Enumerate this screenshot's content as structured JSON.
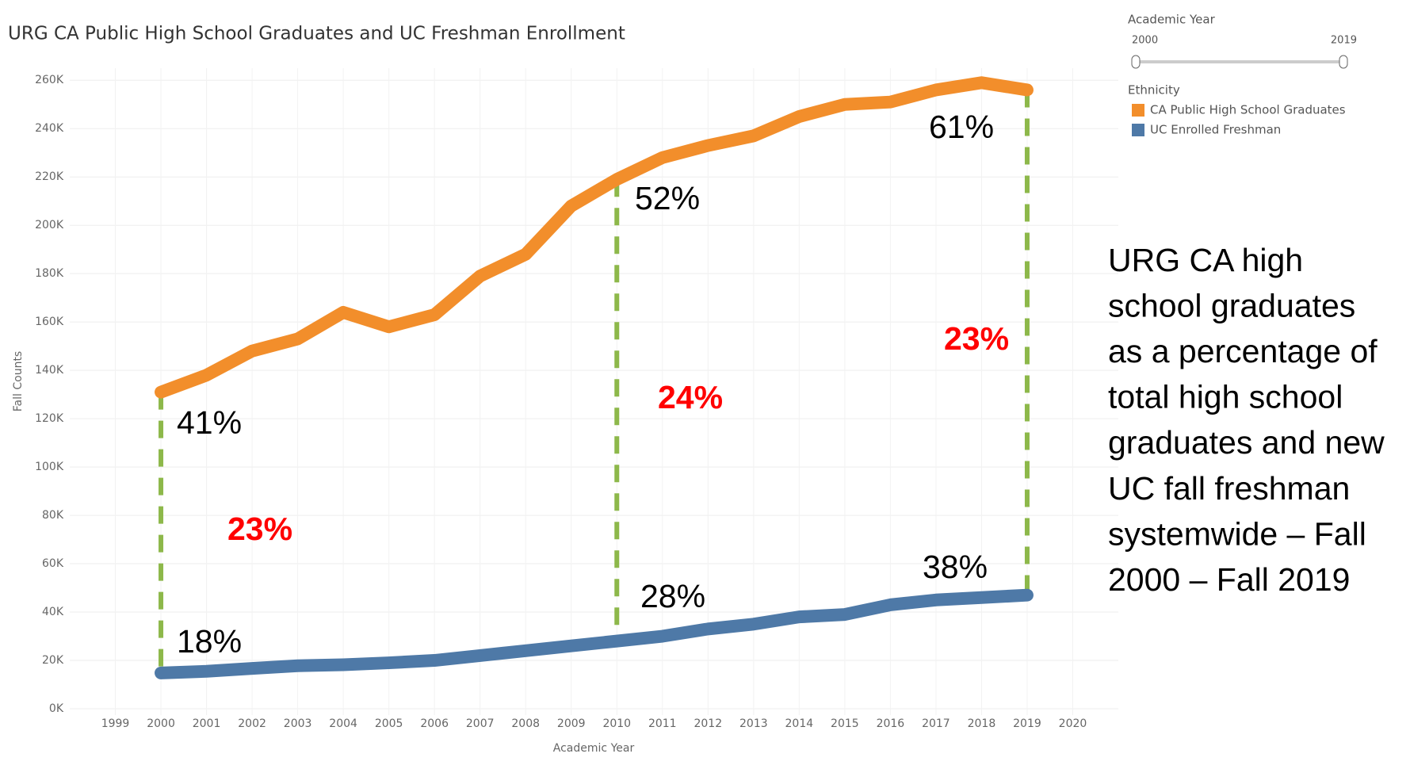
{
  "chart_data": {
    "type": "line",
    "title": "URG CA Public High School Graduates and UC Freshman Enrollment",
    "x_label": "Academic Year",
    "y_label": "Fall Counts",
    "x": [
      2000,
      2001,
      2002,
      2003,
      2004,
      2005,
      2006,
      2007,
      2008,
      2009,
      2010,
      2011,
      2012,
      2013,
      2014,
      2015,
      2016,
      2017,
      2018,
      2019
    ],
    "series": [
      {
        "name": "CA Public High School Graduates",
        "color": "#f28e2b",
        "values": [
          131000,
          138000,
          148000,
          153000,
          164000,
          158000,
          163000,
          179000,
          188000,
          208000,
          219000,
          228000,
          233000,
          237000,
          245000,
          250000,
          251000,
          256000,
          259000,
          256000
        ]
      },
      {
        "name": "UC Enrolled Freshman",
        "color": "#4e79a7",
        "values": [
          14800,
          15500,
          16700,
          17800,
          18200,
          19000,
          20000,
          22000,
          24000,
          26000,
          28000,
          30000,
          33000,
          35000,
          38000,
          39000,
          43000,
          45000,
          46000,
          47000
        ]
      }
    ],
    "xlim": [
      1998,
      2021
    ],
    "xticks": [
      1999,
      2000,
      2001,
      2002,
      2003,
      2004,
      2005,
      2006,
      2007,
      2008,
      2009,
      2010,
      2011,
      2012,
      2013,
      2014,
      2015,
      2016,
      2017,
      2018,
      2019,
      2020
    ],
    "ylim": [
      0,
      265000
    ],
    "yticks": [
      {
        "value": 0,
        "label": "0K"
      },
      {
        "value": 20000,
        "label": "20K"
      },
      {
        "value": 40000,
        "label": "40K"
      },
      {
        "value": 60000,
        "label": "60K"
      },
      {
        "value": 80000,
        "label": "80K"
      },
      {
        "value": 100000,
        "label": "100K"
      },
      {
        "value": 120000,
        "label": "120K"
      },
      {
        "value": 140000,
        "label": "140K"
      },
      {
        "value": 160000,
        "label": "160K"
      },
      {
        "value": 180000,
        "label": "180K"
      },
      {
        "value": 200000,
        "label": "200K"
      },
      {
        "value": 220000,
        "label": "220K"
      },
      {
        "value": 240000,
        "label": "240K"
      },
      {
        "value": 260000,
        "label": "260K"
      }
    ],
    "grid": true,
    "legend_title": "Ethnicity",
    "filter": {
      "title": "Academic Year",
      "min": "2000",
      "max": "2019"
    },
    "annotations": [
      "41%",
      "18%",
      "23%",
      "52%",
      "28%",
      "24%",
      "61%",
      "38%",
      "23%"
    ],
    "side_note": [
      "URG CA high",
      "school graduates",
      "as a percentage of",
      "total high school",
      "graduates and new",
      "UC fall freshman",
      "systemwide – Fall",
      "2000 – Fall 2019"
    ]
  }
}
